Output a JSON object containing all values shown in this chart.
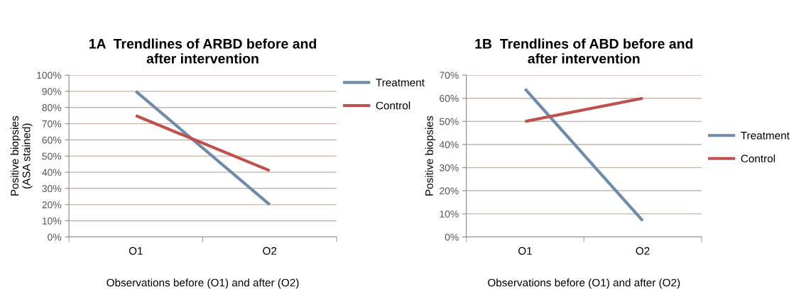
{
  "chart_data": [
    {
      "type": "line",
      "title": "1A  Trendlines of ARBD before and\nafter intervention",
      "xlabel": "Observations before (O1) and after (O2)",
      "ylabel": "Positive biopsies\n(ASA stained)",
      "categories": [
        "O1",
        "O2"
      ],
      "series": [
        {
          "name": "Treatment",
          "color": "#6f8baa",
          "values": [
            90,
            20
          ]
        },
        {
          "name": "Control",
          "color": "#c0504d",
          "values": [
            75,
            41
          ]
        }
      ],
      "ylim": [
        0,
        100
      ],
      "yticks": [
        {
          "value": 0,
          "label": "0%"
        },
        {
          "value": 10,
          "label": "10%"
        },
        {
          "value": 20,
          "label": "20%"
        },
        {
          "value": 30,
          "label": "30%"
        },
        {
          "value": 40,
          "label": "40%"
        },
        {
          "value": 50,
          "label": "50%"
        },
        {
          "value": 60,
          "label": "60%"
        },
        {
          "value": 70,
          "label": "70%"
        },
        {
          "value": 80,
          "label": "80%"
        },
        {
          "value": 90,
          "label": "90%"
        },
        {
          "value": 100,
          "label": "100%"
        }
      ],
      "grid": "y",
      "legend": "top right",
      "marker": "none",
      "line_style": "solid"
    },
    {
      "type": "line",
      "title": "1B  Trendlines of ABD before and\nafter intervention",
      "xlabel": "Observations before (O1) and after (O2)",
      "ylabel": "Positive biopsies",
      "categories": [
        "O1",
        "O2"
      ],
      "series": [
        {
          "name": "Treatment",
          "color": "#6f8baa",
          "values": [
            64,
            7
          ]
        },
        {
          "name": "Control",
          "color": "#c0504d",
          "values": [
            50,
            60
          ]
        }
      ],
      "ylim": [
        0,
        70
      ],
      "yticks": [
        {
          "value": 0,
          "label": "0%"
        },
        {
          "value": 10,
          "label": "10%"
        },
        {
          "value": 20,
          "label": "20%"
        },
        {
          "value": 30,
          "label": "30%"
        },
        {
          "value": 40,
          "label": "40%"
        },
        {
          "value": 50,
          "label": "50%"
        },
        {
          "value": 60,
          "label": "60%"
        },
        {
          "value": 70,
          "label": "70%"
        }
      ],
      "grid": "y",
      "legend": "right",
      "marker": "none",
      "line_style": "solid"
    }
  ]
}
